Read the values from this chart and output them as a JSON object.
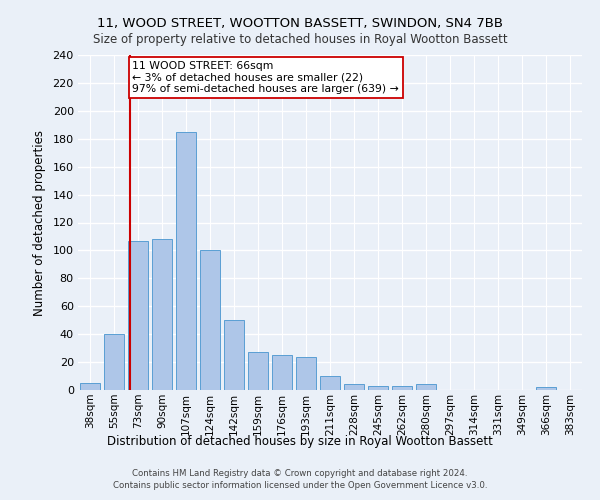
{
  "title": "11, WOOD STREET, WOOTTON BASSETT, SWINDON, SN4 7BB",
  "subtitle": "Size of property relative to detached houses in Royal Wootton Bassett",
  "xlabel_bottom": "Distribution of detached houses by size in Royal Wootton Bassett",
  "ylabel": "Number of detached properties",
  "footer1": "Contains HM Land Registry data © Crown copyright and database right 2024.",
  "footer2": "Contains public sector information licensed under the Open Government Licence v3.0.",
  "categories": [
    "38sqm",
    "55sqm",
    "73sqm",
    "90sqm",
    "107sqm",
    "124sqm",
    "142sqm",
    "159sqm",
    "176sqm",
    "193sqm",
    "211sqm",
    "228sqm",
    "245sqm",
    "262sqm",
    "280sqm",
    "297sqm",
    "314sqm",
    "331sqm",
    "349sqm",
    "366sqm",
    "383sqm"
  ],
  "values": [
    5,
    40,
    107,
    108,
    185,
    100,
    50,
    27,
    25,
    24,
    10,
    4,
    3,
    3,
    4,
    0,
    0,
    0,
    0,
    2,
    0
  ],
  "bar_color": "#aec6e8",
  "bar_edge_color": "#5a9fd4",
  "bg_color": "#eaf0f8",
  "grid_color": "#ffffff",
  "vline_x": 1.65,
  "vline_color": "#cc0000",
  "annotation_line1": "11 WOOD STREET: 66sqm",
  "annotation_line2": "← 3% of detached houses are smaller (22)",
  "annotation_line3": "97% of semi-detached houses are larger (639) →",
  "annotation_box_color": "#ffffff",
  "annotation_box_edge": "#cc0000",
  "ylim": [
    0,
    240
  ],
  "yticks": [
    0,
    20,
    40,
    60,
    80,
    100,
    120,
    140,
    160,
    180,
    200,
    220,
    240
  ]
}
